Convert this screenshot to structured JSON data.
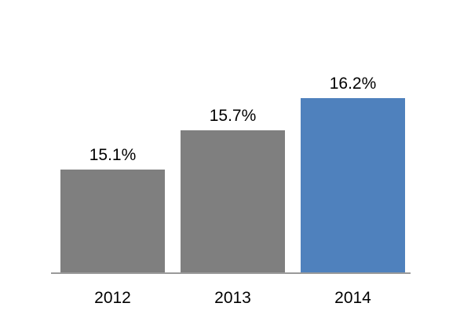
{
  "chart_data": {
    "type": "bar",
    "title": "",
    "categories": [
      "2012",
      "2013",
      "2014"
    ],
    "values": [
      15.1,
      15.7,
      16.2
    ],
    "data_labels": [
      "15.1%",
      "15.7%",
      "16.2%"
    ],
    "ylabel": "",
    "xlabel": "",
    "ylim": [
      13.5,
      16.4
    ],
    "grid": false,
    "legend": "none",
    "highlight_index": 2,
    "colors": {
      "bar_default": "#7f7f7f",
      "bar_highlight": "#4f81bd",
      "axis_line": "#9a9a9a",
      "label_text": "#000000",
      "background": "#ffffff"
    }
  }
}
